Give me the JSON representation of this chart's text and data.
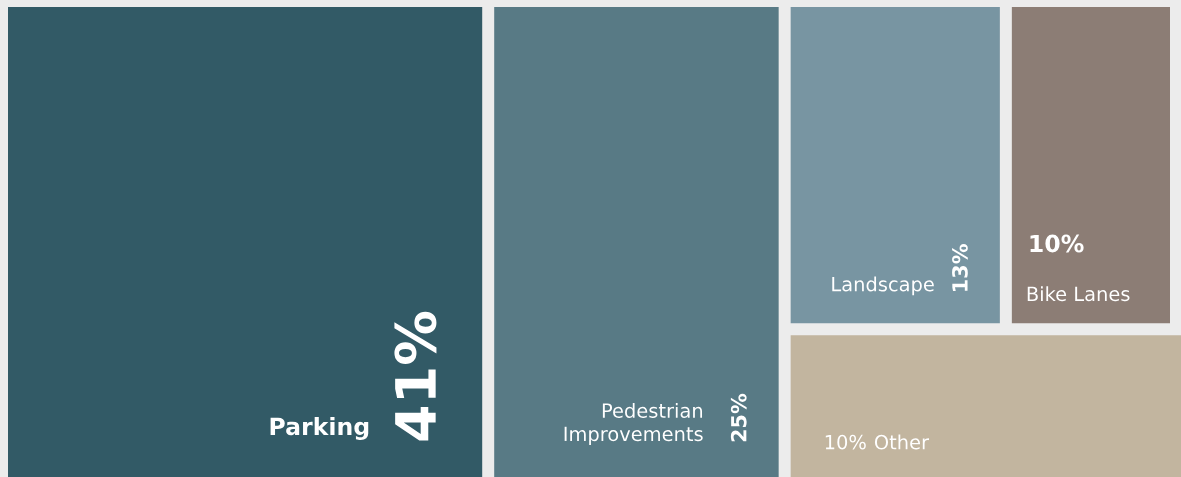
{
  "chart_data": {
    "type": "other",
    "categories": [
      "Parking",
      "Pedestrian\nImprovements",
      "Landscape",
      "Bike Lanes",
      "Other"
    ],
    "values": [
      41,
      25,
      13,
      10,
      10
    ],
    "value_labels": [
      "41%",
      "25%",
      "13%",
      "10%",
      "10%"
    ],
    "colors": [
      "#325a66",
      "#587a85",
      "#7895a2",
      "#8c7d75",
      "#c2b59f"
    ]
  }
}
